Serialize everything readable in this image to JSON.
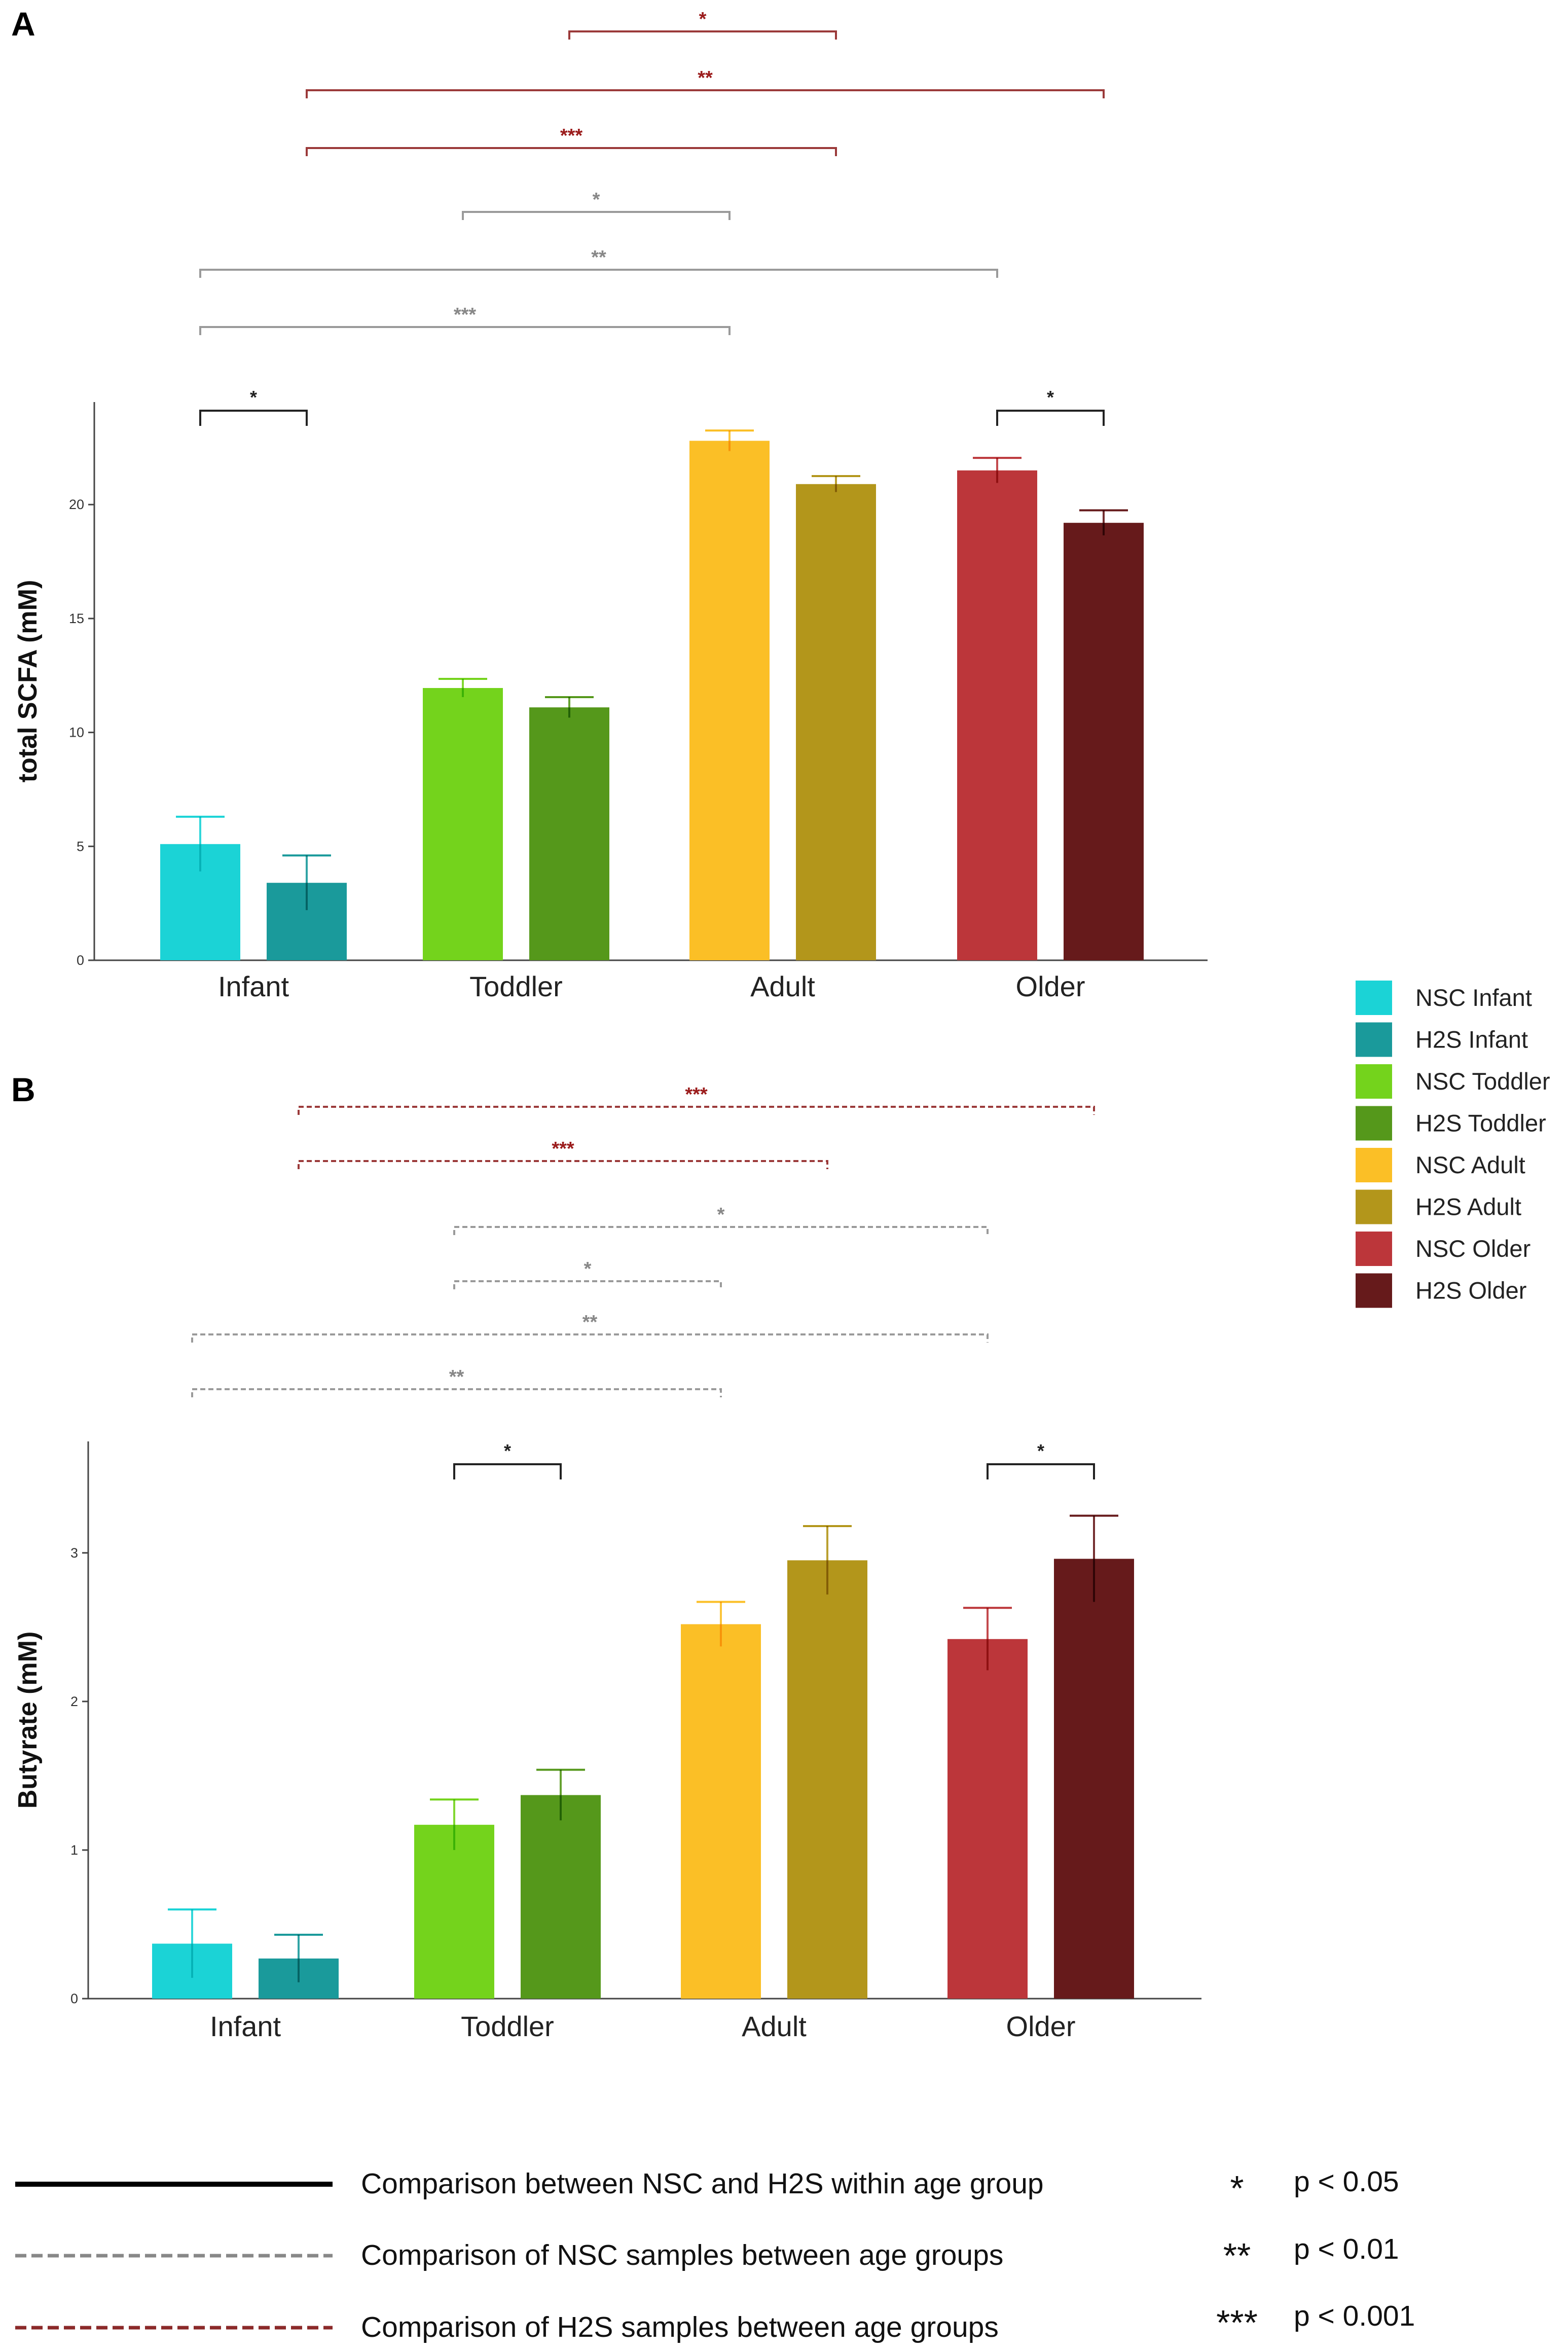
{
  "legend": {
    "items": [
      {
        "label": "NSC Infant",
        "color": "#1bd3d6"
      },
      {
        "label": "H2S Infant",
        "color": "#1a9a9b"
      },
      {
        "label": "NSC Toddler",
        "color": "#74d31c"
      },
      {
        "label": "H2S Toddler",
        "color": "#55981b"
      },
      {
        "label": "NSC Adult",
        "color": "#fbbf26"
      },
      {
        "label": "H2S Adult",
        "color": "#b3961b"
      },
      {
        "label": "NSC Older",
        "color": "#bc363a"
      },
      {
        "label": "H2S Older",
        "color": "#661a1b"
      }
    ]
  },
  "key": {
    "lines": [
      {
        "style": "solid",
        "color": "#000000",
        "label": "Comparison between NSC and H2S within age group"
      },
      {
        "style": "dashed",
        "color": "#888888",
        "label": "Comparison of NSC samples between age groups"
      },
      {
        "style": "dashed",
        "color": "#8b2a2a",
        "label": "Comparison of H2S samples between age groups"
      }
    ],
    "significance": [
      {
        "stars": "*",
        "p": "p < 0.05"
      },
      {
        "stars": "**",
        "p": "p < 0.01"
      },
      {
        "stars": "***",
        "p": "p < 0.001"
      }
    ]
  },
  "chart_data": [
    {
      "panel": "A",
      "type": "bar",
      "ylabel": "total SCFA (mM)",
      "ylim": [
        0,
        24.5
      ],
      "yticks": [
        0,
        5,
        10,
        15,
        20
      ],
      "categories": [
        "Infant",
        "Toddler",
        "Adult",
        "Older"
      ],
      "series": [
        {
          "name": "NSC",
          "values": [
            5.1,
            11.95,
            22.8,
            21.5
          ],
          "errors": [
            1.2,
            0.4,
            0.45,
            0.55
          ]
        },
        {
          "name": "H2S",
          "values": [
            3.4,
            11.1,
            20.9,
            19.2
          ],
          "errors": [
            1.2,
            0.45,
            0.35,
            0.55
          ]
        }
      ],
      "comparisons": [
        {
          "from": [
            0,
            0
          ],
          "to": [
            0,
            1
          ],
          "stars": "*",
          "kind": "within"
        },
        {
          "from": [
            3,
            0
          ],
          "to": [
            3,
            1
          ],
          "stars": "*",
          "kind": "within"
        },
        {
          "from": [
            0,
            0
          ],
          "to": [
            2,
            0
          ],
          "stars": "***",
          "kind": "nsc"
        },
        {
          "from": [
            0,
            0
          ],
          "to": [
            3,
            0
          ],
          "stars": "**",
          "kind": "nsc"
        },
        {
          "from": [
            1,
            0
          ],
          "to": [
            2,
            0
          ],
          "stars": "*",
          "kind": "nsc"
        },
        {
          "from": [
            0,
            1
          ],
          "to": [
            2,
            1
          ],
          "stars": "***",
          "kind": "h2s"
        },
        {
          "from": [
            0,
            1
          ],
          "to": [
            3,
            1
          ],
          "stars": "**",
          "kind": "h2s"
        },
        {
          "from": [
            1,
            1
          ],
          "to": [
            2,
            1
          ],
          "stars": "*",
          "kind": "h2s"
        }
      ]
    },
    {
      "panel": "B",
      "type": "bar",
      "ylabel": "Butyrate (mM)",
      "ylim": [
        0,
        3.75
      ],
      "yticks": [
        0,
        1,
        2,
        3
      ],
      "categories": [
        "Infant",
        "Toddler",
        "Adult",
        "Older"
      ],
      "series": [
        {
          "name": "NSC",
          "values": [
            0.37,
            1.17,
            2.52,
            2.42
          ],
          "errors": [
            0.23,
            0.17,
            0.15,
            0.21
          ]
        },
        {
          "name": "H2S",
          "values": [
            0.27,
            1.37,
            2.95,
            2.96
          ],
          "errors": [
            0.16,
            0.17,
            0.23,
            0.29
          ]
        }
      ],
      "comparisons": [
        {
          "from": [
            1,
            0
          ],
          "to": [
            1,
            1
          ],
          "stars": "*",
          "kind": "within"
        },
        {
          "from": [
            3,
            0
          ],
          "to": [
            3,
            1
          ],
          "stars": "*",
          "kind": "within"
        },
        {
          "from": [
            0,
            0
          ],
          "to": [
            2,
            0
          ],
          "stars": "**",
          "kind": "nsc"
        },
        {
          "from": [
            0,
            0
          ],
          "to": [
            3,
            0
          ],
          "stars": "**",
          "kind": "nsc"
        },
        {
          "from": [
            1,
            0
          ],
          "to": [
            2,
            0
          ],
          "stars": "*",
          "kind": "nsc"
        },
        {
          "from": [
            1,
            0
          ],
          "to": [
            3,
            0
          ],
          "stars": "*",
          "kind": "nsc"
        },
        {
          "from": [
            0,
            1
          ],
          "to": [
            2,
            1
          ],
          "stars": "***",
          "kind": "h2s"
        },
        {
          "from": [
            0,
            1
          ],
          "to": [
            3,
            1
          ],
          "stars": "***",
          "kind": "h2s"
        }
      ]
    }
  ]
}
